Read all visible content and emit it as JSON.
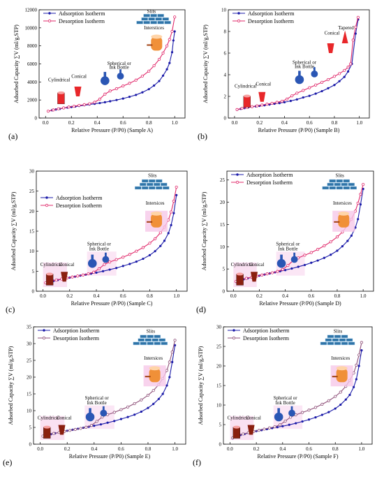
{
  "colors": {
    "adsorption": "#1a1aa8",
    "desorption": "#e0286a",
    "desorption_ef": "#8e4f78",
    "axis": "#000000",
    "slit_blue": "#2f74a8",
    "flask_blue": "#2a56b4",
    "cyl_red": "#e8272a",
    "cyl_brown": "#8a2010",
    "intersticeOrange": "#f09038",
    "highlight_pink": "#f6c8e8"
  },
  "icons": [
    "cylinder-icon",
    "cone-icon",
    "flask-icon",
    "slit-icon",
    "interstice-icon",
    "tapered-icon"
  ],
  "chart_data": [
    {
      "panel": "(a)",
      "type": "line",
      "xlabel": "Relative Pressure (P/P0)  (Sample A)",
      "ylabel": "Adsorbed Capacity ∑V (ml/g,STP)",
      "xlim": [
        -0.05,
        1.08
      ],
      "ylim": [
        0,
        12000
      ],
      "xticks": [
        "0.0",
        "0.2",
        "0.4",
        "0.6",
        "0.8",
        "1.0"
      ],
      "yticks": [
        "0",
        "2000",
        "4000",
        "6000",
        "8000",
        "10000",
        "12000"
      ],
      "legend": [
        "Adsorption Isotherm",
        "Desorption Isotherm"
      ],
      "legend_position": "top-left",
      "annotations": [
        "Cylindrical",
        "Conical",
        "Spherical or Ink Bottle",
        "Slits",
        "Interstices"
      ],
      "series": [
        {
          "name": "Adsorption Isotherm",
          "x": [
            0.02,
            0.05,
            0.08,
            0.11,
            0.14,
            0.17,
            0.2,
            0.23,
            0.26,
            0.3,
            0.34,
            0.38,
            0.42,
            0.46,
            0.5,
            0.55,
            0.6,
            0.65,
            0.7,
            0.75,
            0.8,
            0.84,
            0.88,
            0.91,
            0.94,
            0.96,
            0.98,
            0.99,
            1.0
          ],
          "y": [
            750,
            860,
            950,
            1020,
            1090,
            1160,
            1220,
            1280,
            1340,
            1420,
            1500,
            1580,
            1660,
            1750,
            1860,
            2000,
            2160,
            2350,
            2560,
            2850,
            3200,
            3600,
            4100,
            4700,
            5400,
            6100,
            7300,
            8600,
            9600
          ]
        },
        {
          "name": "Desorption Isotherm",
          "x": [
            0.02,
            0.06,
            0.1,
            0.14,
            0.18,
            0.22,
            0.26,
            0.3,
            0.34,
            0.38,
            0.42,
            0.46,
            0.5,
            0.55,
            0.6,
            0.65,
            0.7,
            0.75,
            0.8,
            0.84,
            0.88,
            0.91,
            0.94,
            0.96,
            0.98,
            1.0
          ],
          "y": [
            760,
            900,
            1020,
            1120,
            1220,
            1310,
            1400,
            1480,
            1580,
            1750,
            2100,
            2650,
            3000,
            3250,
            3550,
            3850,
            4200,
            4650,
            5200,
            5800,
            6500,
            7200,
            8000,
            8700,
            9600,
            11200
          ]
        }
      ]
    },
    {
      "panel": "(b)",
      "type": "line",
      "xlabel": "Relative Pressure (P/P0)  (Sample B)",
      "ylabel": "Adsorbed Capacity ∑V (ml/g,STP)",
      "xlim": [
        -0.05,
        1.08
      ],
      "ylim": [
        0,
        10
      ],
      "xticks": [
        "0.0",
        "0.2",
        "0.4",
        "0.6",
        "0.8",
        "1.0"
      ],
      "yticks": [
        "0",
        "2",
        "4",
        "6",
        "8",
        "10"
      ],
      "legend": [
        "Adsorption Isotherm",
        "Desorption Isotherm"
      ],
      "legend_position": "top-left",
      "annotations": [
        "Cylindrical",
        "Conical",
        "Spherical or Ink Bottle",
        "Conical",
        "Tapered"
      ],
      "series": [
        {
          "name": "Adsorption Isotherm",
          "x": [
            0.02,
            0.05,
            0.08,
            0.11,
            0.14,
            0.17,
            0.2,
            0.24,
            0.28,
            0.32,
            0.36,
            0.4,
            0.45,
            0.5,
            0.55,
            0.6,
            0.65,
            0.7,
            0.75,
            0.8,
            0.84,
            0.88,
            0.91,
            0.94,
            0.97,
            0.99
          ],
          "y": [
            0.75,
            0.85,
            0.92,
            0.98,
            1.03,
            1.08,
            1.12,
            1.18,
            1.25,
            1.32,
            1.38,
            1.46,
            1.58,
            1.72,
            1.9,
            2.05,
            2.25,
            2.48,
            2.75,
            3.05,
            3.4,
            3.8,
            4.3,
            5.0,
            7.8,
            9.1
          ]
        },
        {
          "name": "Desorption Isotherm",
          "x": [
            0.02,
            0.06,
            0.1,
            0.14,
            0.18,
            0.22,
            0.26,
            0.3,
            0.34,
            0.38,
            0.42,
            0.46,
            0.5,
            0.55,
            0.6,
            0.65,
            0.7,
            0.75,
            0.8,
            0.84,
            0.88,
            0.91,
            0.93,
            0.95,
            0.97,
            0.99
          ],
          "y": [
            0.78,
            0.9,
            0.98,
            1.05,
            1.12,
            1.2,
            1.28,
            1.36,
            1.45,
            1.55,
            1.75,
            2.05,
            2.3,
            2.55,
            2.8,
            3.05,
            3.3,
            3.55,
            3.85,
            4.1,
            4.4,
            4.7,
            5.0,
            7.2,
            8.4,
            9.3
          ]
        }
      ]
    },
    {
      "panel": "(c)",
      "type": "line",
      "xlabel": "Relative Pressure (P/P0)  (Sample C)",
      "ylabel": "Adsorbed Capacity ∑V (ml/g,STP)",
      "xlim": [
        -0.05,
        1.08
      ],
      "ylim": [
        0,
        30
      ],
      "xticks": [
        "0.0",
        "0.2",
        "0.4",
        "0.6",
        "0.8",
        "1.0"
      ],
      "yticks": [
        "0",
        "5",
        "10",
        "15",
        "20",
        "25",
        "30"
      ],
      "legend": [
        "Adsorption Isotherm",
        "Desorption Isotherm"
      ],
      "legend_position": "center-left",
      "annotations": [
        "Cylindrical",
        "Conical",
        "Spherical or Ink Bottle",
        "Slits",
        "Intersices"
      ],
      "series": [
        {
          "name": "Adsorption Isotherm",
          "x": [
            0.02,
            0.05,
            0.08,
            0.11,
            0.14,
            0.17,
            0.2,
            0.24,
            0.28,
            0.32,
            0.36,
            0.4,
            0.45,
            0.5,
            0.55,
            0.6,
            0.65,
            0.7,
            0.75,
            0.8,
            0.84,
            0.88,
            0.91,
            0.94,
            0.96,
            0.98,
            1.0
          ],
          "y": [
            2.0,
            2.35,
            2.6,
            2.8,
            3.0,
            3.2,
            3.4,
            3.65,
            3.9,
            4.15,
            4.4,
            4.65,
            5.0,
            5.4,
            5.8,
            6.3,
            6.8,
            7.4,
            8.1,
            9.0,
            10.0,
            11.3,
            12.6,
            14.5,
            16.5,
            19.5,
            24.0
          ]
        },
        {
          "name": "Desorption Isotherm",
          "x": [
            0.02,
            0.06,
            0.1,
            0.14,
            0.18,
            0.22,
            0.26,
            0.3,
            0.34,
            0.38,
            0.42,
            0.46,
            0.5,
            0.55,
            0.6,
            0.65,
            0.7,
            0.75,
            0.8,
            0.84,
            0.88,
            0.91,
            0.94,
            0.96,
            0.98,
            1.0
          ],
          "y": [
            2.1,
            2.5,
            2.8,
            3.05,
            3.3,
            3.55,
            3.8,
            4.05,
            4.35,
            4.75,
            5.6,
            6.7,
            7.3,
            7.9,
            8.5,
            9.2,
            10.0,
            10.9,
            12.0,
            13.1,
            14.6,
            16.0,
            17.8,
            19.8,
            22.5,
            26.0
          ]
        }
      ]
    },
    {
      "panel": "(d)",
      "type": "line",
      "xlabel": "Relative Pressure (P/P0)  (Sample D)",
      "ylabel": "Adsorbed Capacity ∑V (ml/g,STP)",
      "xlim": [
        -0.05,
        1.08
      ],
      "ylim": [
        0,
        27
      ],
      "xticks": [
        "0.0",
        "0.2",
        "0.4",
        "0.6",
        "0.8",
        "1.0"
      ],
      "yticks": [
        "0",
        "5",
        "10",
        "15",
        "20",
        "25"
      ],
      "legend": [
        "Adsorption Isotherm",
        "Desorption Isotherm"
      ],
      "legend_position": "top-left",
      "annotations": [
        "Cylindrical",
        "Conical",
        "Spherical or Ink Bottle",
        "Slits",
        "Intersices"
      ],
      "series": [
        {
          "name": "Adsorption Isotherm",
          "x": [
            0.02,
            0.05,
            0.08,
            0.11,
            0.14,
            0.17,
            0.2,
            0.24,
            0.28,
            0.32,
            0.36,
            0.4,
            0.45,
            0.5,
            0.55,
            0.6,
            0.65,
            0.7,
            0.75,
            0.8,
            0.84,
            0.88,
            0.91,
            0.94,
            0.96,
            0.98,
            1.0
          ],
          "y": [
            2.1,
            2.45,
            2.7,
            2.9,
            3.1,
            3.3,
            3.5,
            3.75,
            4.0,
            4.25,
            4.5,
            4.75,
            5.1,
            5.5,
            5.9,
            6.4,
            6.9,
            7.5,
            8.2,
            9.1,
            10.1,
            11.3,
            12.5,
            14.3,
            16.2,
            19.5,
            23.0
          ]
        },
        {
          "name": "Desorption Isotherm",
          "x": [
            0.02,
            0.06,
            0.1,
            0.14,
            0.18,
            0.22,
            0.26,
            0.3,
            0.34,
            0.38,
            0.42,
            0.46,
            0.5,
            0.55,
            0.6,
            0.65,
            0.7,
            0.75,
            0.8,
            0.84,
            0.88,
            0.91,
            0.94,
            0.96,
            0.98,
            1.0
          ],
          "y": [
            2.2,
            2.6,
            2.9,
            3.15,
            3.4,
            3.65,
            3.9,
            4.15,
            4.45,
            4.9,
            5.8,
            6.9,
            7.5,
            8.1,
            8.7,
            9.4,
            10.2,
            11.1,
            12.2,
            13.3,
            14.8,
            16.2,
            18.0,
            19.8,
            21.8,
            24.0
          ]
        }
      ]
    },
    {
      "panel": "(e)",
      "type": "line",
      "xlabel": "Relative Pressure (P/P0) (Sample E)",
      "ylabel": "Adsorbed Capacity ∑V (ml/g,STP)",
      "xlim": [
        -0.05,
        1.08
      ],
      "ylim": [
        0,
        35
      ],
      "xticks": [
        "0.0",
        "0.2",
        "0.4",
        "0.6",
        "0.8",
        "1.0"
      ],
      "yticks": [
        "0",
        "5",
        "10",
        "15",
        "20",
        "25",
        "30",
        "35"
      ],
      "legend": [
        "Adsorption Isotherm",
        "Desorption Isotherm"
      ],
      "legend_position": "top-left",
      "annotations": [
        "Cylindrical",
        "Conical",
        "Spherical or Ink Bottle",
        "Slits",
        "Intersices"
      ],
      "series": [
        {
          "name": "Adsorption Isotherm",
          "x": [
            0.02,
            0.05,
            0.08,
            0.11,
            0.14,
            0.17,
            0.2,
            0.24,
            0.28,
            0.32,
            0.36,
            0.4,
            0.45,
            0.5,
            0.55,
            0.6,
            0.65,
            0.7,
            0.75,
            0.8,
            0.84,
            0.88,
            0.91,
            0.94,
            0.96,
            0.98,
            1.0
          ],
          "y": [
            2.3,
            2.7,
            3.0,
            3.25,
            3.5,
            3.75,
            4.0,
            4.3,
            4.6,
            4.9,
            5.2,
            5.5,
            5.9,
            6.4,
            6.9,
            7.5,
            8.1,
            8.8,
            9.7,
            10.8,
            12.0,
            13.5,
            15.0,
            17.5,
            20.0,
            24.5,
            29.5
          ]
        },
        {
          "name": "Desorption Isotherm",
          "x": [
            0.02,
            0.06,
            0.1,
            0.14,
            0.18,
            0.22,
            0.26,
            0.3,
            0.34,
            0.38,
            0.42,
            0.46,
            0.5,
            0.55,
            0.6,
            0.65,
            0.7,
            0.75,
            0.8,
            0.84,
            0.88,
            0.91,
            0.94,
            0.96,
            0.98,
            1.0
          ],
          "y": [
            2.4,
            2.85,
            3.2,
            3.5,
            3.8,
            4.1,
            4.4,
            4.7,
            5.05,
            5.6,
            6.8,
            8.1,
            8.8,
            9.5,
            10.3,
            11.1,
            12.1,
            13.2,
            14.6,
            16.0,
            17.8,
            19.6,
            22.0,
            24.5,
            27.5,
            31.0
          ]
        }
      ]
    },
    {
      "panel": "(f)",
      "type": "line",
      "xlabel": "Relative Pressure (P/P0) (Sample F)",
      "ylabel": "Adsorbed Capacity ∑V (ml/g,STP)",
      "xlim": [
        -0.05,
        1.08
      ],
      "ylim": [
        0,
        30
      ],
      "xticks": [
        "0.0",
        "0.2",
        "0.4",
        "0.6",
        "0.8",
        "1.0"
      ],
      "yticks": [
        "0",
        "5",
        "10",
        "15",
        "20",
        "25",
        "30"
      ],
      "legend": [
        "Adsorption Isotherm",
        "Desorption Isotherm"
      ],
      "legend_position": "top-left",
      "annotations": [
        "Cylindrical",
        "Conical",
        "Spherical or Ink Bottle",
        "Slits",
        "Intersices"
      ],
      "series": [
        {
          "name": "Adsorption Isotherm",
          "x": [
            0.02,
            0.05,
            0.08,
            0.11,
            0.14,
            0.17,
            0.2,
            0.24,
            0.28,
            0.32,
            0.36,
            0.4,
            0.45,
            0.5,
            0.55,
            0.6,
            0.65,
            0.7,
            0.75,
            0.8,
            0.84,
            0.88,
            0.91,
            0.94,
            0.96,
            0.98,
            1.0
          ],
          "y": [
            1.5,
            2.0,
            2.35,
            2.6,
            2.85,
            3.1,
            3.35,
            3.6,
            3.85,
            4.1,
            4.35,
            4.6,
            4.95,
            5.35,
            5.8,
            6.3,
            6.85,
            7.5,
            8.2,
            9.1,
            10.1,
            11.4,
            12.6,
            14.6,
            16.6,
            20.0,
            24.0
          ]
        },
        {
          "name": "Desorption Isotherm",
          "x": [
            0.02,
            0.06,
            0.1,
            0.14,
            0.18,
            0.22,
            0.26,
            0.3,
            0.34,
            0.38,
            0.42,
            0.46,
            0.5,
            0.55,
            0.6,
            0.65,
            0.7,
            0.75,
            0.8,
            0.84,
            0.88,
            0.91,
            0.94,
            0.96,
            0.98,
            1.0
          ],
          "y": [
            1.6,
            2.2,
            2.6,
            2.95,
            3.25,
            3.55,
            3.85,
            4.15,
            4.45,
            4.95,
            5.9,
            6.9,
            7.5,
            8.1,
            8.7,
            9.4,
            10.2,
            11.1,
            12.2,
            13.3,
            14.8,
            16.3,
            18.2,
            20.2,
            22.8,
            26.0
          ]
        }
      ]
    }
  ]
}
